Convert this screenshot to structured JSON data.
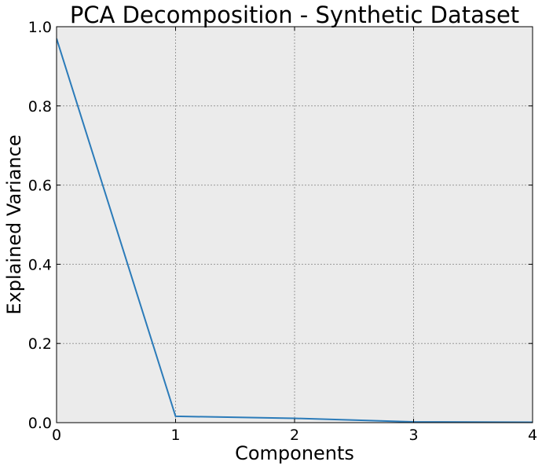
{
  "chart_data": {
    "type": "line",
    "title": "PCA Decomposition - Synthetic Dataset",
    "xlabel": "Components",
    "ylabel": "Explained Variance",
    "xlim": [
      0,
      4
    ],
    "ylim": [
      0,
      1.0
    ],
    "xticks": [
      0,
      1,
      2,
      3,
      4
    ],
    "xtick_labels": [
      "0",
      "1",
      "2",
      "3",
      "4"
    ],
    "yticks": [
      0.0,
      0.2,
      0.4,
      0.6,
      0.8,
      1.0
    ],
    "ytick_labels": [
      "0.0",
      "0.2",
      "0.4",
      "0.6",
      "0.8",
      "1.0"
    ],
    "grid": true,
    "background_color": "#ebebeb",
    "series": [
      {
        "color": "#2b7bb9",
        "x": [
          0,
          1,
          2,
          3,
          4
        ],
        "y": [
          0.97,
          0.016,
          0.011,
          0.002,
          0.001
        ]
      }
    ]
  }
}
